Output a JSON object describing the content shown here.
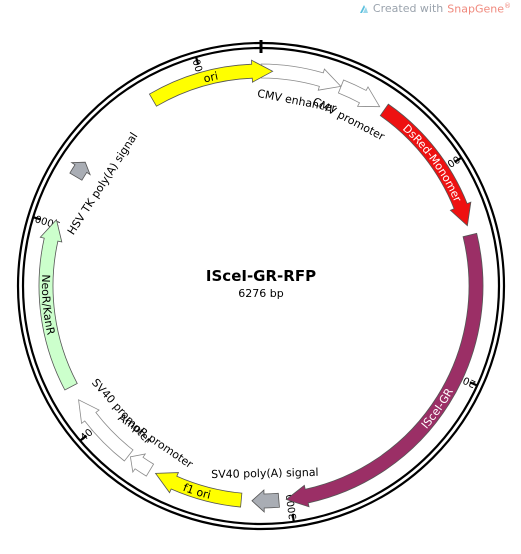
{
  "watermark": {
    "prefix": "Created with",
    "brand": "SnapGene",
    "mark": "®"
  },
  "plasmid": {
    "name": "ISceI-GR-RFP",
    "length_label": "6276 bp",
    "length_bp": 6276
  },
  "ticks": [
    "1000",
    "2000",
    "3000",
    "4000",
    "5000",
    "6000"
  ],
  "features": [
    {
      "key": "cmv_enhancer",
      "label": "CMV enhancer",
      "start": 1,
      "end": 380,
      "color": "#ffffff",
      "text_inside": false
    },
    {
      "key": "cmv_promoter",
      "label": "CMV promoter",
      "start": 381,
      "end": 584,
      "color": "#ffffff",
      "text_inside": false
    },
    {
      "key": "dsred",
      "label": "DsRed-Monomer",
      "start": 610,
      "end": 1285,
      "color": "#ee1111",
      "text_inside": true
    },
    {
      "key": "iscei_gr",
      "label": "ISceI-GR",
      "start": 1330,
      "end": 3020,
      "color": "#9b2f66",
      "text_inside": true
    },
    {
      "key": "sv40_polya",
      "label": "SV40 poly(A) signal",
      "start": 3055,
      "end": 3180,
      "color": "#a9adb4",
      "text_inside": false
    },
    {
      "key": "f1_ori",
      "label": "f1 ori",
      "start": 3230,
      "end": 3650,
      "color": "#ffff00",
      "text_inside": true
    },
    {
      "key": "ampr_promoter",
      "label": "AmpR promoter",
      "start": 3680,
      "end": 3790,
      "color": "#ffffff",
      "text_inside": false
    },
    {
      "key": "sv40_promoter",
      "label": "SV40 promoter",
      "start": 3800,
      "end": 4150,
      "color": "#ffffff",
      "text_inside": false
    },
    {
      "key": "neor_kanr",
      "label": "NeoR/KanR",
      "start": 4220,
      "end": 5020,
      "color": "#ccffcc",
      "text_inside": true
    },
    {
      "key": "hsv_polya",
      "label": "HSV TK poly(A) signal",
      "start": 5240,
      "end": 5320,
      "color": "#a9adb4",
      "text_inside": false
    },
    {
      "key": "ori",
      "label": "ori",
      "start": 5750,
      "end": 6330,
      "color": "#ffff00",
      "text_inside": true
    }
  ]
}
